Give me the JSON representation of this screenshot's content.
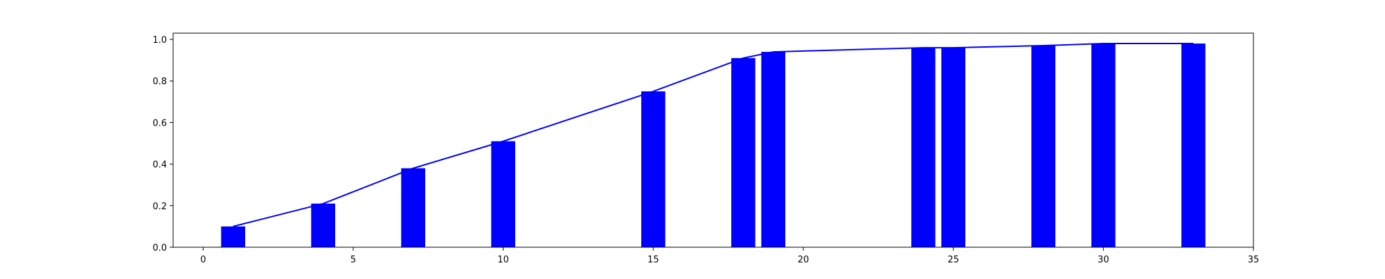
{
  "chart_data": {
    "type": "bar",
    "title": "",
    "xlabel": "",
    "ylabel": "",
    "xlim": [
      -1,
      35
    ],
    "ylim": [
      0,
      1.03
    ],
    "grid": false,
    "bar_color": "#0000ff",
    "line_color": "#0000ff",
    "bar_width": 0.8,
    "x_ticks": [
      0,
      5,
      10,
      15,
      20,
      25,
      30,
      35
    ],
    "y_ticks": [
      "0.0",
      "0.2",
      "0.4",
      "0.6",
      "0.8",
      "1.0"
    ],
    "x": [
      1,
      4,
      7,
      10,
      15,
      18,
      19,
      24,
      25,
      28,
      30,
      33
    ],
    "values": [
      0.1,
      0.21,
      0.38,
      0.51,
      0.75,
      0.91,
      0.94,
      0.96,
      0.96,
      0.97,
      0.98,
      0.98
    ],
    "line": {
      "x": [
        1,
        4,
        7,
        10,
        15,
        18,
        19,
        24,
        25,
        28,
        30,
        33
      ],
      "y": [
        0.1,
        0.21,
        0.38,
        0.51,
        0.75,
        0.91,
        0.94,
        0.96,
        0.96,
        0.97,
        0.98,
        0.98
      ]
    }
  }
}
